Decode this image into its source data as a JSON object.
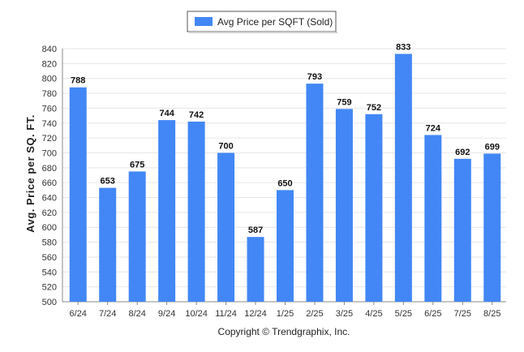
{
  "chart_data": {
    "type": "bar",
    "categories": [
      "6/24",
      "7/24",
      "8/24",
      "9/24",
      "10/24",
      "11/24",
      "12/24",
      "1/25",
      "2/25",
      "3/25",
      "4/25",
      "5/25",
      "6/25",
      "7/25",
      "8/25"
    ],
    "series": [
      {
        "name": "Avg Price per SQFT (Sold)",
        "values": [
          788,
          653,
          675,
          744,
          742,
          700,
          587,
          650,
          793,
          759,
          752,
          833,
          724,
          692,
          699
        ],
        "color": "#4287f5"
      }
    ],
    "title": "",
    "xlabel": "",
    "ylabel": "Avg. Price per SQ. FT.",
    "ylim": [
      500,
      840
    ],
    "yticks": [
      500,
      520,
      540,
      560,
      580,
      600,
      620,
      640,
      660,
      680,
      700,
      720,
      740,
      760,
      780,
      800,
      820,
      840
    ],
    "grid": true,
    "legend_position": "top-center"
  },
  "footer": {
    "copyright": "Copyright © Trendgraphix, Inc."
  }
}
